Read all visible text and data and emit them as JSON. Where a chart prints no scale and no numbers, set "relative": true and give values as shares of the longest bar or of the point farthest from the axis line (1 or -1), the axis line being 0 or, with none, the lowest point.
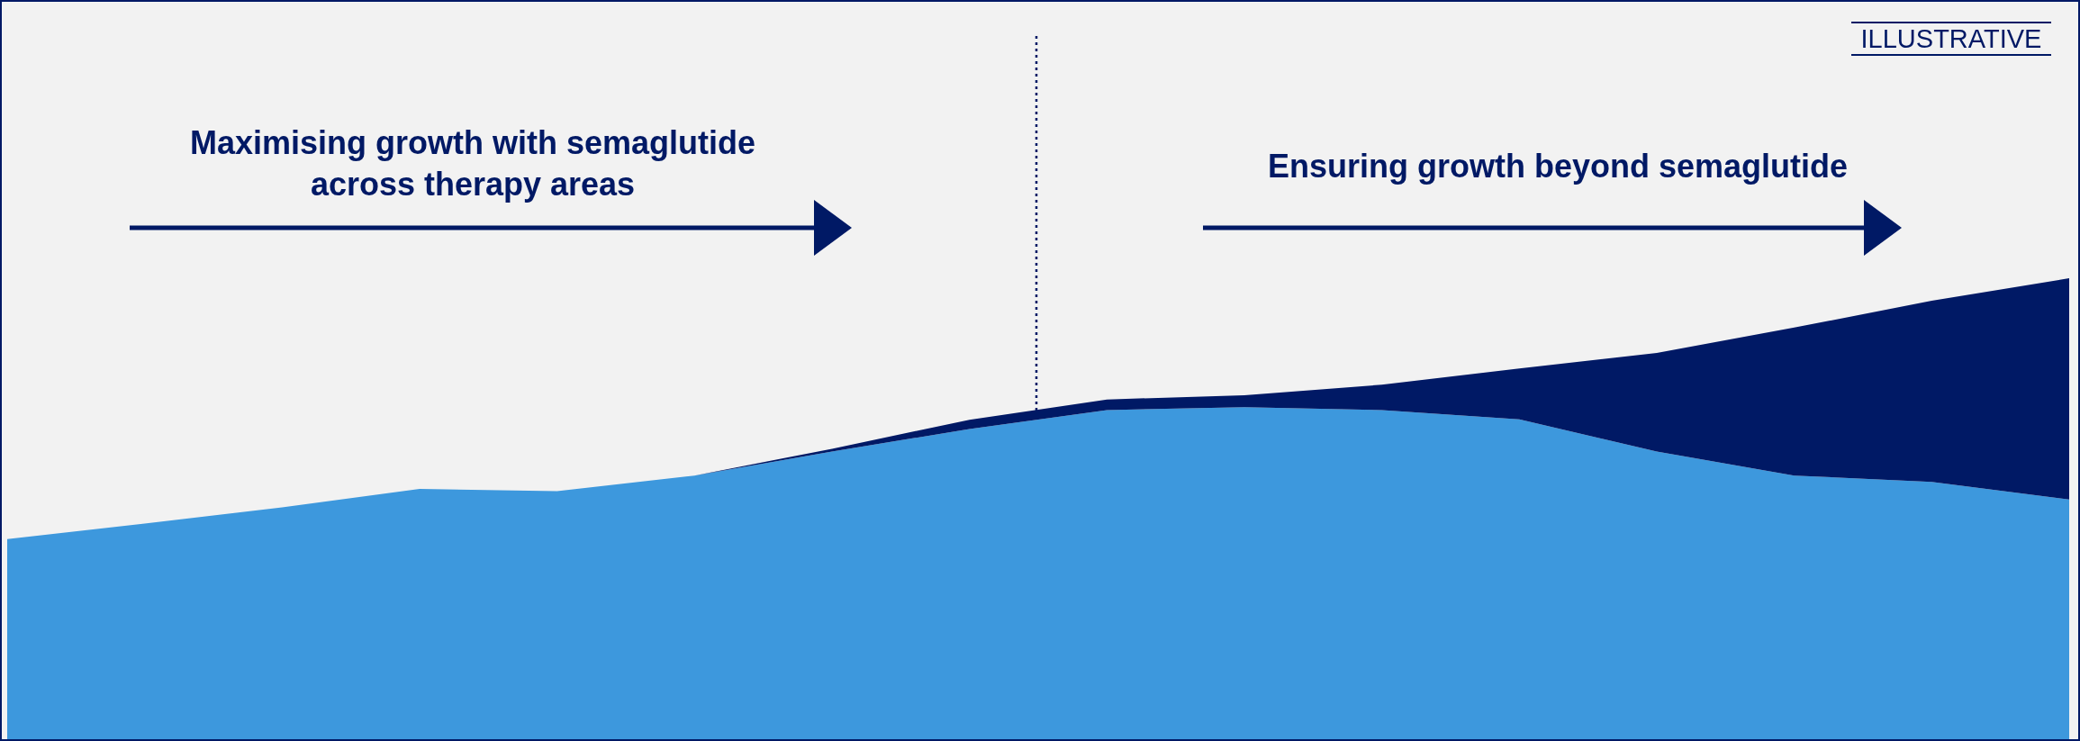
{
  "chart_data": {
    "type": "area",
    "relative": true,
    "stacked": true,
    "categories": [
      null,
      null,
      null,
      null,
      null,
      null,
      null,
      null,
      null,
      null,
      null,
      null,
      null,
      null,
      null,
      null
    ],
    "series": [
      {
        "color": "#3d98dd",
        "values": [
          0.434,
          0.468,
          0.503,
          0.543,
          0.538,
          0.572,
          0.624,
          0.673,
          0.714,
          0.72,
          0.714,
          0.694,
          0.624,
          0.572,
          0.558,
          0.52
        ]
      },
      {
        "color": "#001965",
        "values": [
          0,
          0,
          0,
          0,
          0,
          0,
          0.006,
          0.02,
          0.023,
          0.026,
          0.055,
          0.11,
          0.214,
          0.321,
          0.393,
          0.48
        ]
      }
    ],
    "annotations": [
      "ILLUSTRATIVE",
      "Maximising growth with semaglutide\nacross therapy areas",
      "Ensuring growth beyond semaglutide"
    ]
  }
}
